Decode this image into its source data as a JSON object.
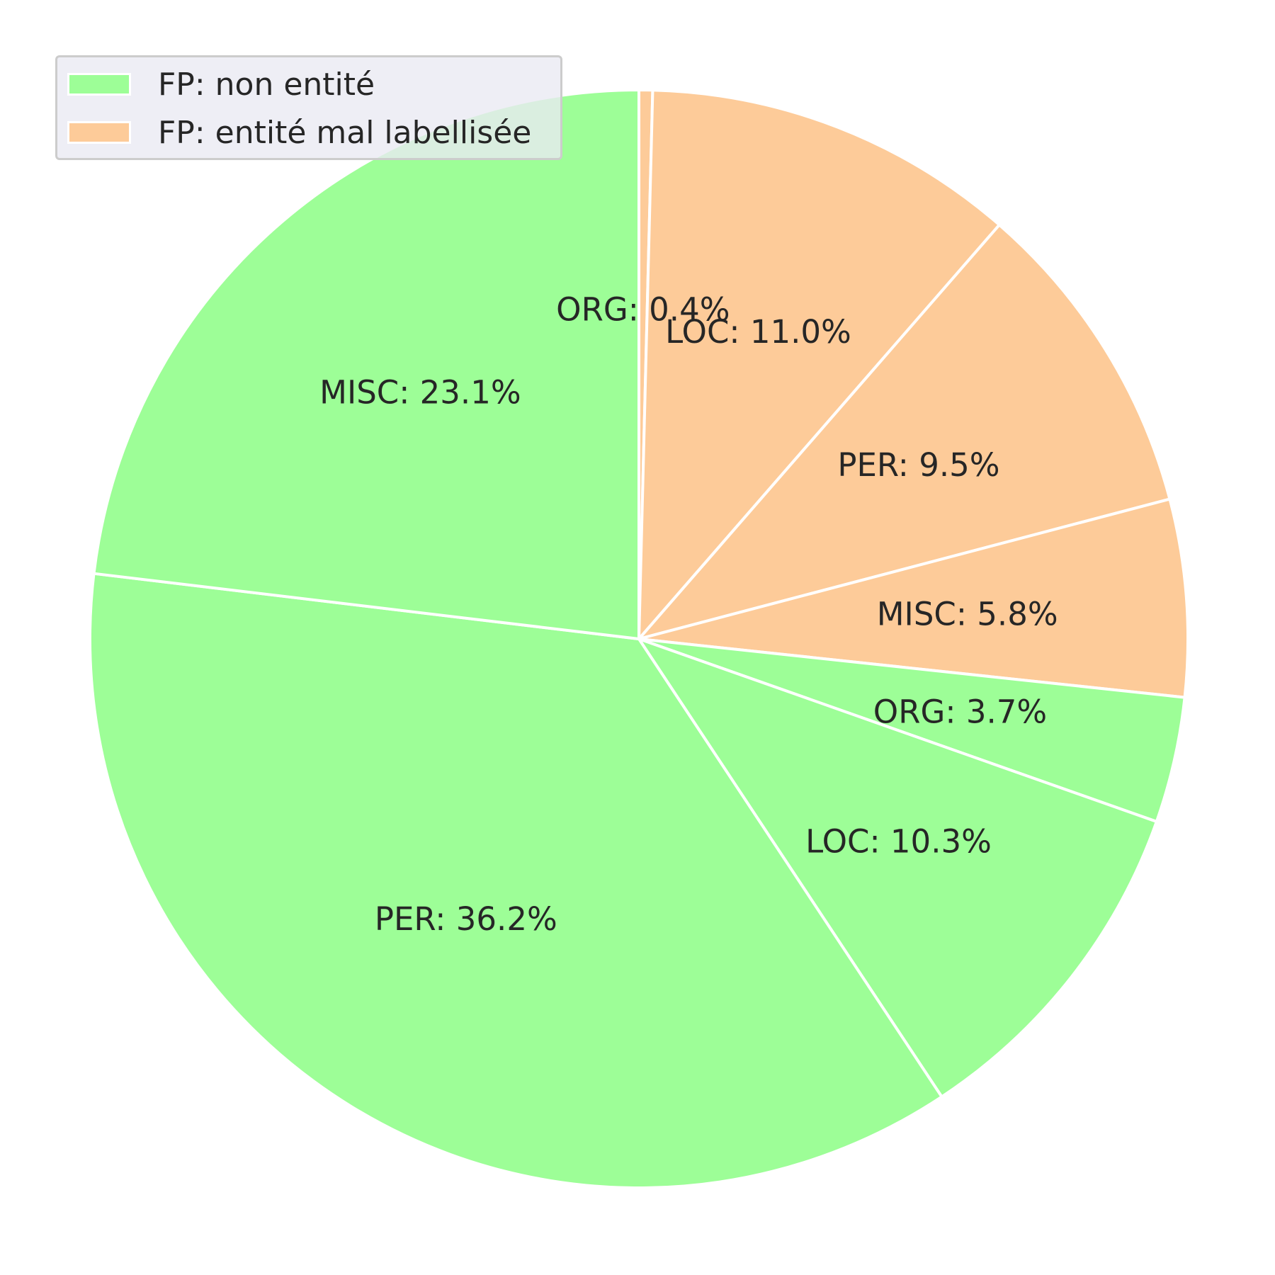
{
  "chart_data": {
    "type": "pie",
    "title": "",
    "start_angle_deg": 90,
    "direction": "clockwise",
    "slice_border_color": "#ffffff",
    "label_color": "#262626",
    "series": [
      {
        "name": "FP: non entité",
        "color": "#9dfe97"
      },
      {
        "name": "FP: entité mal labellisée",
        "color": "#fdcb99"
      }
    ],
    "slices": [
      {
        "label": "ORG: 0.4%",
        "category": "ORG",
        "value": 0.4,
        "group": 1
      },
      {
        "label": "LOC: 11.0%",
        "category": "LOC",
        "value": 11.0,
        "group": 1
      },
      {
        "label": "PER: 9.5%",
        "category": "PER",
        "value": 9.5,
        "group": 1
      },
      {
        "label": "MISC: 5.8%",
        "category": "MISC",
        "value": 5.8,
        "group": 1
      },
      {
        "label": "ORG: 3.7%",
        "category": "ORG",
        "value": 3.7,
        "group": 0
      },
      {
        "label": "LOC: 10.3%",
        "category": "LOC",
        "value": 10.3,
        "group": 0
      },
      {
        "label": "PER: 36.2%",
        "category": "PER",
        "value": 36.2,
        "group": 0
      },
      {
        "label": "MISC: 23.1%",
        "category": "MISC",
        "value": 23.1,
        "group": 0
      }
    ],
    "legend": {
      "position": "top-left",
      "entries": [
        "FP: non entité",
        "FP: entité mal labellisée"
      ]
    }
  }
}
